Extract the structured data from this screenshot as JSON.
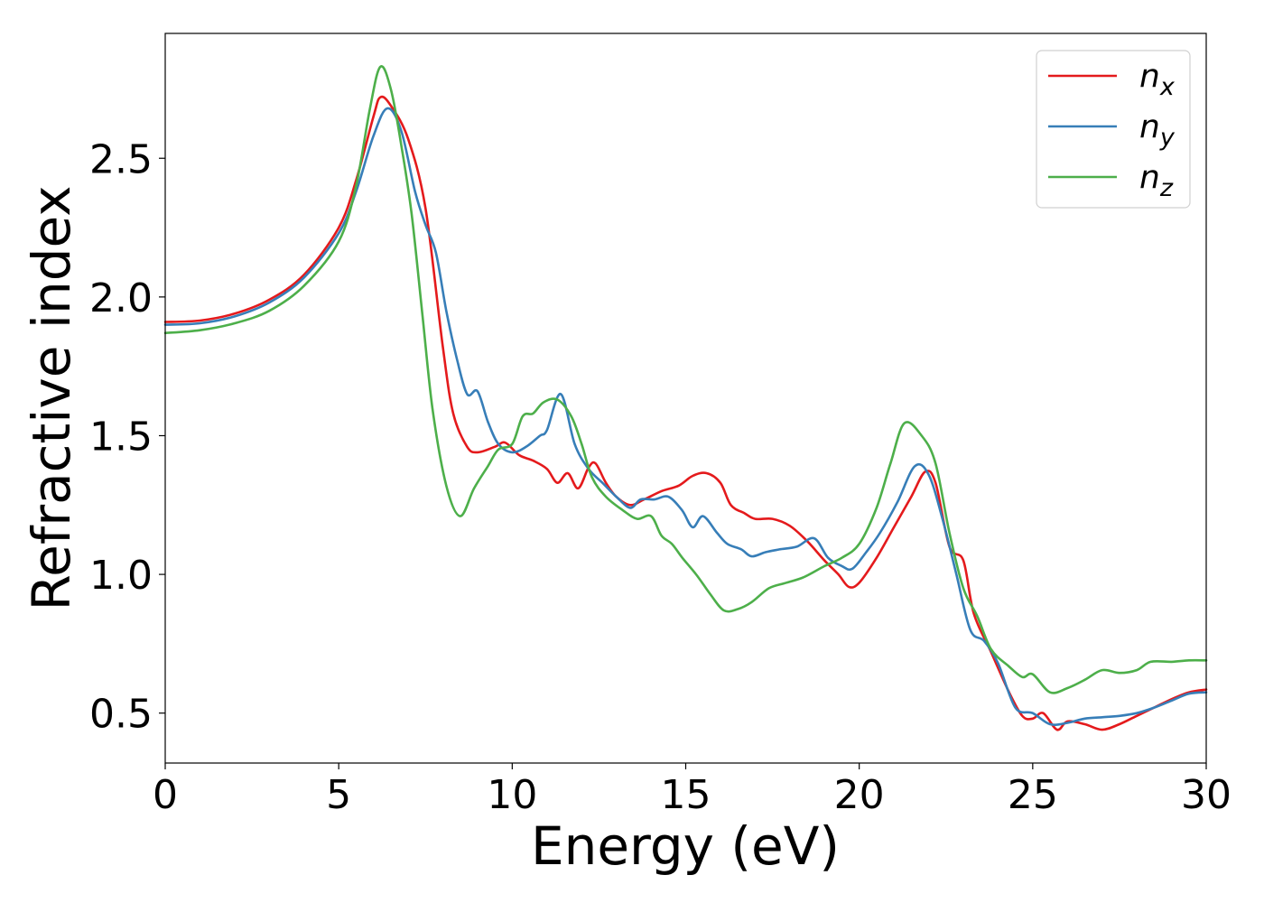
{
  "chart_data": {
    "type": "line",
    "xlabel": "Energy (eV)",
    "ylabel": "Refractive index",
    "xlim": [
      0,
      30
    ],
    "ylim": [
      0.32,
      2.95
    ],
    "xticks": [
      0,
      5,
      10,
      15,
      20,
      25,
      30
    ],
    "xtick_labels": [
      "0",
      "5",
      "10",
      "15",
      "20",
      "25",
      "30"
    ],
    "yticks": [
      0.5,
      1.0,
      1.5,
      2.0,
      2.5
    ],
    "ytick_labels": [
      "0.5",
      "1.0",
      "1.5",
      "2.0",
      "2.5"
    ],
    "grid": false,
    "legend_position": "top-right",
    "series": [
      {
        "name_base": "n",
        "name_sub": "x",
        "color": "#e41a1c",
        "points": [
          [
            0,
            1.91
          ],
          [
            1,
            1.915
          ],
          [
            2,
            1.94
          ],
          [
            3,
            1.99
          ],
          [
            4,
            2.08
          ],
          [
            5,
            2.25
          ],
          [
            5.5,
            2.42
          ],
          [
            6,
            2.65
          ],
          [
            6.2,
            2.72
          ],
          [
            6.5,
            2.69
          ],
          [
            7,
            2.57
          ],
          [
            7.5,
            2.32
          ],
          [
            8,
            1.82
          ],
          [
            8.3,
            1.58
          ],
          [
            8.7,
            1.46
          ],
          [
            9,
            1.44
          ],
          [
            9.5,
            1.46
          ],
          [
            9.8,
            1.475
          ],
          [
            10.2,
            1.43
          ],
          [
            10.6,
            1.41
          ],
          [
            11,
            1.38
          ],
          [
            11.3,
            1.33
          ],
          [
            11.6,
            1.365
          ],
          [
            11.9,
            1.31
          ],
          [
            12.2,
            1.385
          ],
          [
            12.4,
            1.4
          ],
          [
            12.7,
            1.33
          ],
          [
            13,
            1.28
          ],
          [
            13.4,
            1.25
          ],
          [
            13.8,
            1.27
          ],
          [
            14.3,
            1.3
          ],
          [
            14.8,
            1.32
          ],
          [
            15.2,
            1.355
          ],
          [
            15.6,
            1.365
          ],
          [
            16,
            1.33
          ],
          [
            16.3,
            1.25
          ],
          [
            16.7,
            1.22
          ],
          [
            17,
            1.2
          ],
          [
            17.5,
            1.2
          ],
          [
            18,
            1.175
          ],
          [
            18.5,
            1.12
          ],
          [
            19,
            1.05
          ],
          [
            19.4,
            1.0
          ],
          [
            19.7,
            0.955
          ],
          [
            20,
            0.97
          ],
          [
            20.5,
            1.06
          ],
          [
            21,
            1.17
          ],
          [
            21.5,
            1.28
          ],
          [
            21.9,
            1.37
          ],
          [
            22.2,
            1.33
          ],
          [
            22.6,
            1.1
          ],
          [
            23,
            1.05
          ],
          [
            23.3,
            0.86
          ],
          [
            23.8,
            0.72
          ],
          [
            24.3,
            0.58
          ],
          [
            24.7,
            0.49
          ],
          [
            25,
            0.48
          ],
          [
            25.3,
            0.5
          ],
          [
            25.7,
            0.44
          ],
          [
            26,
            0.47
          ],
          [
            26.5,
            0.46
          ],
          [
            27,
            0.44
          ],
          [
            27.5,
            0.46
          ],
          [
            28,
            0.49
          ],
          [
            28.5,
            0.52
          ],
          [
            29,
            0.55
          ],
          [
            29.5,
            0.575
          ],
          [
            30,
            0.585
          ]
        ]
      },
      {
        "name_base": "n",
        "name_sub": "y",
        "color": "#377eb8",
        "points": [
          [
            0,
            1.9
          ],
          [
            1,
            1.905
          ],
          [
            2,
            1.93
          ],
          [
            3,
            1.98
          ],
          [
            4,
            2.07
          ],
          [
            5,
            2.23
          ],
          [
            5.5,
            2.38
          ],
          [
            6,
            2.58
          ],
          [
            6.4,
            2.68
          ],
          [
            6.8,
            2.6
          ],
          [
            7.2,
            2.38
          ],
          [
            7.5,
            2.26
          ],
          [
            7.8,
            2.16
          ],
          [
            8.1,
            1.95
          ],
          [
            8.4,
            1.78
          ],
          [
            8.7,
            1.65
          ],
          [
            9,
            1.66
          ],
          [
            9.3,
            1.55
          ],
          [
            9.6,
            1.47
          ],
          [
            10,
            1.44
          ],
          [
            10.4,
            1.46
          ],
          [
            10.8,
            1.5
          ],
          [
            11,
            1.52
          ],
          [
            11.4,
            1.65
          ],
          [
            11.8,
            1.47
          ],
          [
            12.2,
            1.38
          ],
          [
            12.6,
            1.33
          ],
          [
            13,
            1.28
          ],
          [
            13.4,
            1.24
          ],
          [
            13.7,
            1.27
          ],
          [
            14.1,
            1.27
          ],
          [
            14.5,
            1.28
          ],
          [
            14.9,
            1.23
          ],
          [
            15.2,
            1.17
          ],
          [
            15.5,
            1.21
          ],
          [
            15.9,
            1.15
          ],
          [
            16.2,
            1.11
          ],
          [
            16.6,
            1.09
          ],
          [
            16.9,
            1.065
          ],
          [
            17.3,
            1.08
          ],
          [
            17.7,
            1.09
          ],
          [
            18.2,
            1.1
          ],
          [
            18.7,
            1.13
          ],
          [
            19.1,
            1.06
          ],
          [
            19.5,
            1.03
          ],
          [
            19.8,
            1.02
          ],
          [
            20.2,
            1.08
          ],
          [
            20.6,
            1.15
          ],
          [
            21.1,
            1.26
          ],
          [
            21.6,
            1.39
          ],
          [
            22,
            1.36
          ],
          [
            22.4,
            1.2
          ],
          [
            22.8,
            1.0
          ],
          [
            23.2,
            0.8
          ],
          [
            23.6,
            0.76
          ],
          [
            24,
            0.68
          ],
          [
            24.5,
            0.52
          ],
          [
            25,
            0.5
          ],
          [
            25.5,
            0.46
          ],
          [
            26,
            0.465
          ],
          [
            26.5,
            0.48
          ],
          [
            27,
            0.485
          ],
          [
            27.5,
            0.49
          ],
          [
            28,
            0.5
          ],
          [
            28.5,
            0.52
          ],
          [
            29,
            0.545
          ],
          [
            29.5,
            0.57
          ],
          [
            30,
            0.575
          ]
        ]
      },
      {
        "name_base": "n",
        "name_sub": "z",
        "color": "#4daf4a",
        "points": [
          [
            0,
            1.87
          ],
          [
            1,
            1.88
          ],
          [
            2,
            1.905
          ],
          [
            3,
            1.95
          ],
          [
            4,
            2.04
          ],
          [
            5,
            2.2
          ],
          [
            5.5,
            2.4
          ],
          [
            5.9,
            2.68
          ],
          [
            6.2,
            2.83
          ],
          [
            6.5,
            2.75
          ],
          [
            6.8,
            2.55
          ],
          [
            7.1,
            2.3
          ],
          [
            7.4,
            1.95
          ],
          [
            7.7,
            1.6
          ],
          [
            8.1,
            1.32
          ],
          [
            8.5,
            1.21
          ],
          [
            8.9,
            1.31
          ],
          [
            9.3,
            1.39
          ],
          [
            9.6,
            1.45
          ],
          [
            10,
            1.47
          ],
          [
            10.3,
            1.57
          ],
          [
            10.6,
            1.58
          ],
          [
            10.9,
            1.62
          ],
          [
            11.3,
            1.63
          ],
          [
            11.7,
            1.57
          ],
          [
            12,
            1.47
          ],
          [
            12.3,
            1.35
          ],
          [
            12.7,
            1.28
          ],
          [
            13.2,
            1.23
          ],
          [
            13.6,
            1.2
          ],
          [
            14,
            1.21
          ],
          [
            14.3,
            1.14
          ],
          [
            14.6,
            1.11
          ],
          [
            14.9,
            1.06
          ],
          [
            15.3,
            1.0
          ],
          [
            15.7,
            0.93
          ],
          [
            16.1,
            0.87
          ],
          [
            16.5,
            0.875
          ],
          [
            16.9,
            0.9
          ],
          [
            17.4,
            0.95
          ],
          [
            17.9,
            0.97
          ],
          [
            18.4,
            0.99
          ],
          [
            19,
            1.03
          ],
          [
            19.5,
            1.06
          ],
          [
            20,
            1.11
          ],
          [
            20.5,
            1.24
          ],
          [
            20.9,
            1.4
          ],
          [
            21.3,
            1.545
          ],
          [
            21.8,
            1.5
          ],
          [
            22.2,
            1.4
          ],
          [
            22.6,
            1.15
          ],
          [
            23,
            0.95
          ],
          [
            23.4,
            0.85
          ],
          [
            23.8,
            0.73
          ],
          [
            24.3,
            0.67
          ],
          [
            24.7,
            0.63
          ],
          [
            25,
            0.64
          ],
          [
            25.5,
            0.575
          ],
          [
            26,
            0.59
          ],
          [
            26.5,
            0.62
          ],
          [
            27,
            0.655
          ],
          [
            27.5,
            0.645
          ],
          [
            28,
            0.655
          ],
          [
            28.4,
            0.685
          ],
          [
            29,
            0.685
          ],
          [
            29.5,
            0.69
          ],
          [
            30,
            0.69
          ]
        ]
      }
    ]
  }
}
